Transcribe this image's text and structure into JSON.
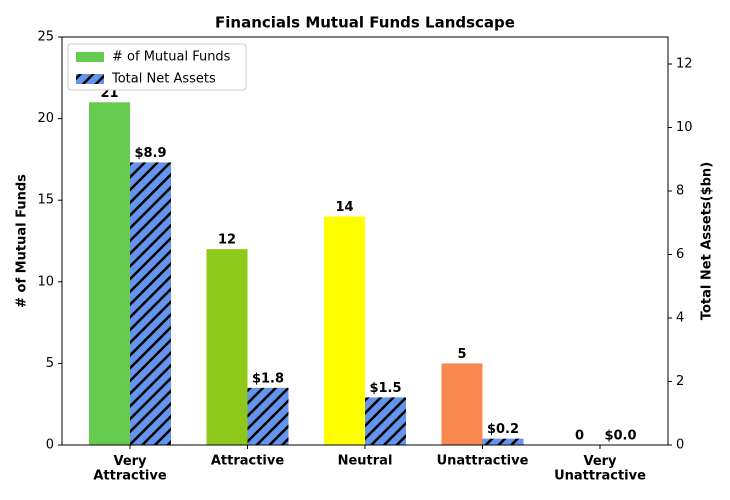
{
  "chart_data": {
    "type": "bar",
    "title": "Financials Mutual Funds Landscape",
    "categories": [
      "Very\nAttractive",
      "Attractive",
      "Neutral",
      "Unattractive",
      "Very\nUnattractive"
    ],
    "y_label": "# of Mutual Funds",
    "y2_label": "Total Net Assets($bn)",
    "series": [
      {
        "name": "# of Mutual Funds",
        "color": "#66cc4f",
        "colors": [
          "#66cc4f",
          "#8dc81a",
          "#ffff00",
          "#f98850",
          "#e8473f"
        ],
        "values": [
          21,
          12,
          14,
          5,
          0
        ]
      },
      {
        "name": "Total Net Assets",
        "color": "#6495ed",
        "hatch": true,
        "axis": "y2",
        "values": [
          8.9,
          1.8,
          1.5,
          0.2,
          0
        ],
        "value_labels": [
          "$8.9",
          "$1.8",
          "$1.5",
          "$0.2",
          "$0.0"
        ]
      }
    ],
    "ylim": [
      0,
      25
    ],
    "yticks": [
      0,
      5,
      10,
      15,
      20,
      25
    ],
    "y2lim": [
      0,
      12.85
    ],
    "y2ticks": [
      0,
      2,
      4,
      6,
      8,
      10,
      12
    ],
    "legend": "upper-left"
  }
}
